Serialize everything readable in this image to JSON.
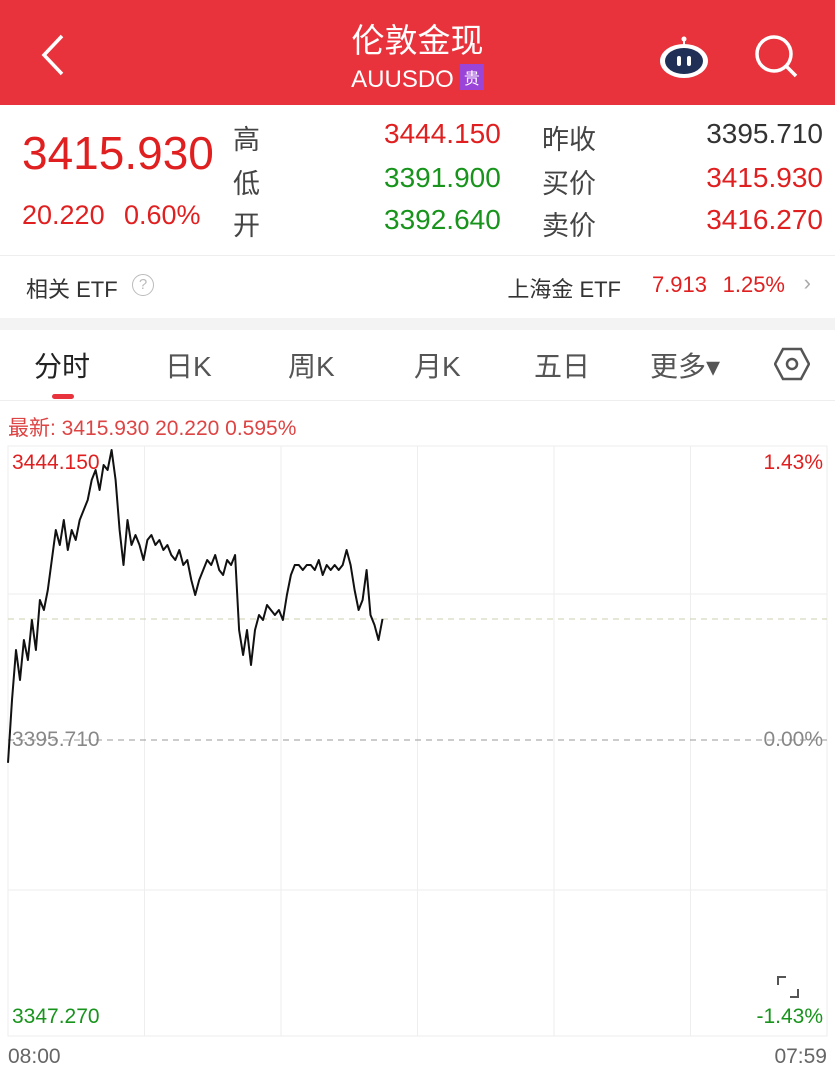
{
  "header": {
    "title": "伦敦金现",
    "code": "AUUSDO",
    "badge": "贵"
  },
  "quote": {
    "last": "3415.930",
    "change": "20.220",
    "change_pct": "0.60%",
    "high_label": "高",
    "high": "3444.150",
    "low_label": "低",
    "low": "3391.900",
    "open_label": "开",
    "open": "3392.640",
    "prev_close_label": "昨收",
    "prev_close": "3395.710",
    "bid_label": "买价",
    "bid": "3415.930",
    "ask_label": "卖价",
    "ask": "3416.270"
  },
  "etf": {
    "label": "相关 ETF",
    "help": "?",
    "name": "上海金 ETF",
    "price": "7.913",
    "pct": "1.25%"
  },
  "tabs": [
    {
      "label": "分时",
      "active": true
    },
    {
      "label": "日K"
    },
    {
      "label": "周K"
    },
    {
      "label": "月K"
    },
    {
      "label": "五日"
    },
    {
      "label": "更多▾"
    }
  ],
  "latest": {
    "text": "最新: 3415.930  20.220  0.595%"
  },
  "colors": {
    "header": "#e8333c",
    "up": "#e02020",
    "down": "#18941c"
  },
  "chart_data": {
    "type": "line",
    "y_labels_left": [
      "3444.150",
      "3395.710",
      "3347.270"
    ],
    "y_labels_right": [
      "1.43%",
      "0.00%",
      "-1.43%"
    ],
    "x_labels": [
      "08:00",
      "07:59"
    ],
    "ylim": [
      3347.27,
      3444.15
    ],
    "prev_close": 3395.71,
    "last": 3415.93,
    "grid": true,
    "times": [
      "08:00",
      "08:07",
      "08:14",
      "08:21",
      "08:28",
      "08:35",
      "08:42",
      "08:49",
      "08:56",
      "09:03",
      "09:10",
      "09:17",
      "09:24",
      "09:31",
      "09:38",
      "09:45",
      "09:52",
      "09:59",
      "10:06",
      "10:13",
      "10:20",
      "10:27",
      "10:34",
      "10:41",
      "10:48",
      "10:55",
      "11:02",
      "11:09",
      "11:16",
      "11:23",
      "11:30",
      "11:37",
      "11:44",
      "11:51",
      "11:58",
      "12:05",
      "12:12",
      "12:19",
      "12:26",
      "12:33",
      "12:40",
      "12:47",
      "12:54",
      "13:01",
      "13:08",
      "13:15",
      "13:22",
      "13:29",
      "13:36",
      "13:43",
      "13:50",
      "13:57",
      "14:04",
      "14:11",
      "14:18",
      "14:25",
      "14:32",
      "14:39",
      "14:46",
      "14:53",
      "15:00",
      "15:07",
      "15:14",
      "15:21",
      "15:28",
      "15:35",
      "15:42",
      "15:49",
      "15:56",
      "16:03",
      "16:10",
      "16:17",
      "16:24",
      "16:31",
      "16:38",
      "16:45",
      "16:52",
      "16:59",
      "17:06",
      "17:13",
      "17:20",
      "17:27",
      "17:34",
      "17:41",
      "17:48",
      "17:55",
      "18:02",
      "18:09",
      "18:16",
      "18:23",
      "18:30",
      "18:37",
      "18:44",
      "18:51",
      "18:58"
    ],
    "values": [
      3391.9,
      3402.39,
      3410.74,
      3405.73,
      3412.41,
      3409.07,
      3415.75,
      3410.74,
      3419.09,
      3417.42,
      3420.76,
      3425.78,
      3430.79,
      3428.28,
      3432.46,
      3427.45,
      3430.79,
      3429.12,
      3432.46,
      3434.13,
      3435.8,
      3439.14,
      3440.81,
      3437.47,
      3441.64,
      3440.81,
      3444.15,
      3439.14,
      3430.79,
      3424.94,
      3432.46,
      3428.28,
      3429.95,
      3428.28,
      3425.78,
      3429.12,
      3429.95,
      3428.28,
      3429.12,
      3427.45,
      3428.28,
      3426.61,
      3425.78,
      3427.45,
      3424.94,
      3425.78,
      3422.43,
      3419.93,
      3422.43,
      3424.11,
      3425.78,
      3424.94,
      3426.61,
      3424.11,
      3423.27,
      3425.78,
      3424.94,
      3426.61,
      3414.08,
      3409.91,
      3414.08,
      3408.24,
      3414.08,
      3416.59,
      3415.75,
      3418.26,
      3417.42,
      3416.59,
      3417.42,
      3415.75,
      3419.93,
      3423.27,
      3424.94,
      3424.94,
      3424.11,
      3424.94,
      3424.94,
      3424.11,
      3425.78,
      3423.27,
      3424.94,
      3424.11,
      3424.94,
      3424.11,
      3424.94,
      3427.45,
      3424.94,
      3420.76,
      3417.42,
      3419.09,
      3424.11,
      3416.59,
      3414.92,
      3412.41,
      3415.93
    ]
  }
}
